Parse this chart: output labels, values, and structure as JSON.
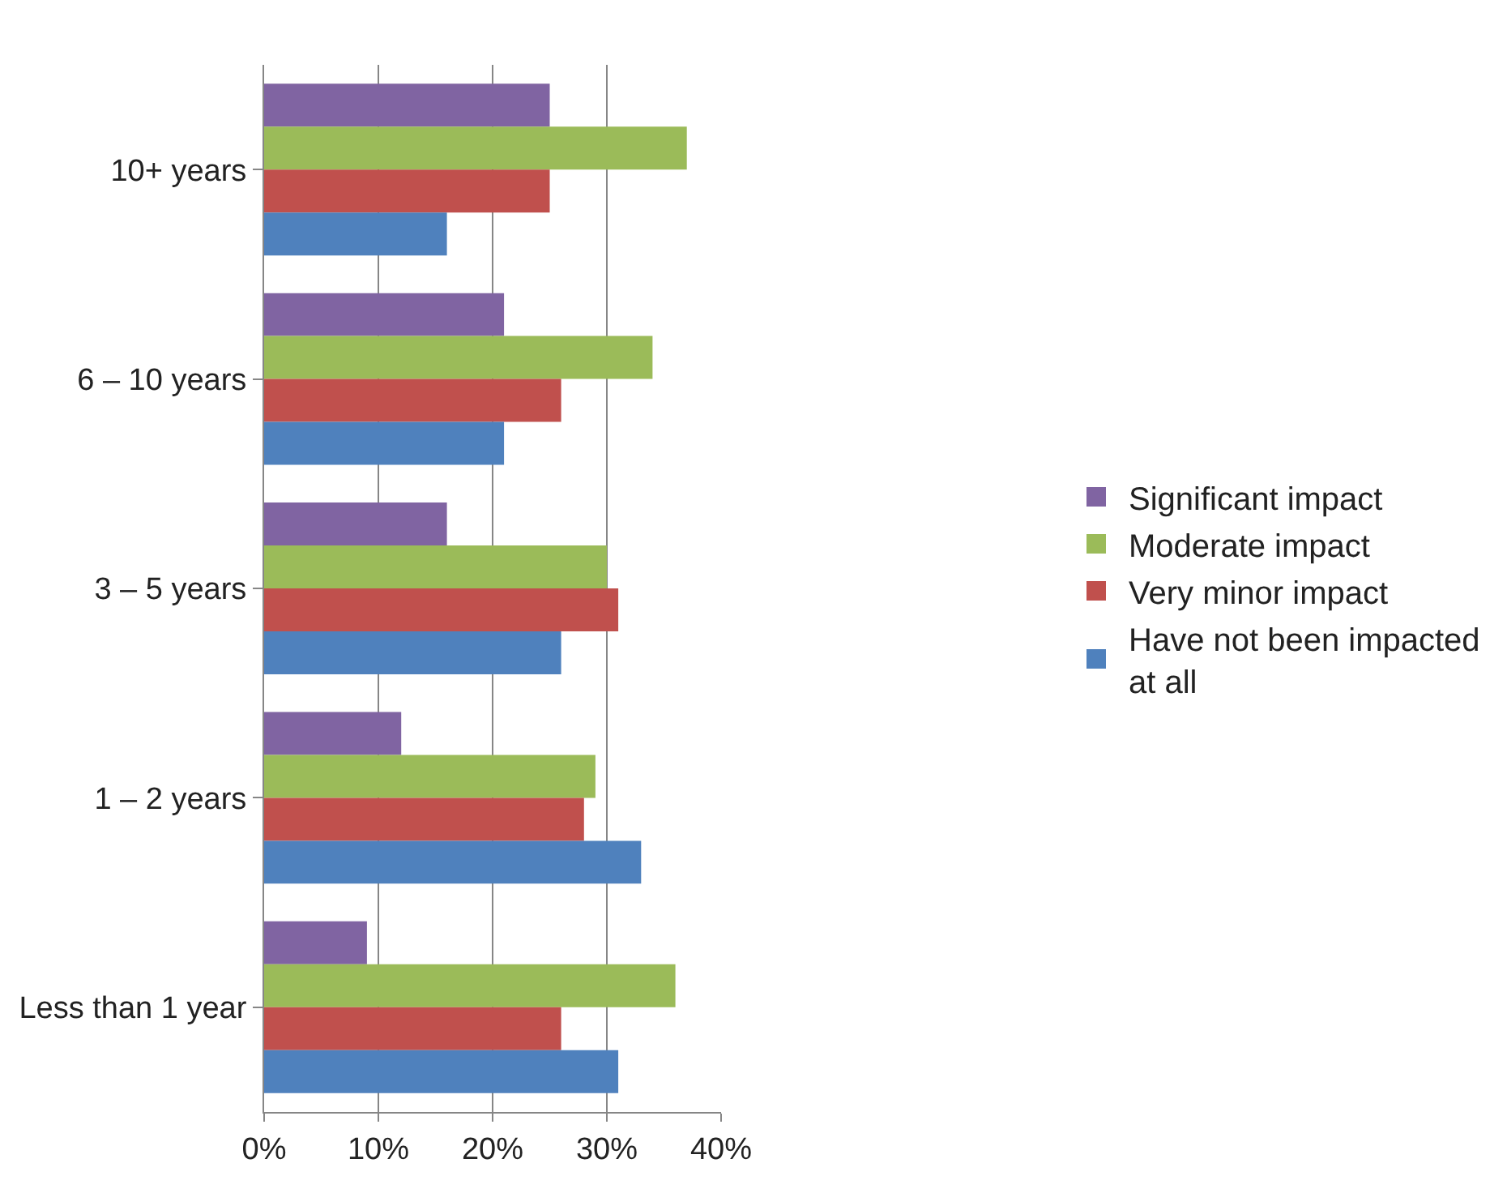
{
  "chart_data": {
    "type": "bar",
    "orientation": "horizontal",
    "categories": [
      "10+ years",
      "6 – 10 years",
      "3 – 5 years",
      "1 – 2 years",
      "Less than 1 year"
    ],
    "series": [
      {
        "name": "Significant impact",
        "color": "#8064a2",
        "values": [
          25,
          21,
          16,
          12,
          9
        ]
      },
      {
        "name": "Moderate impact",
        "color": "#9bbb59",
        "values": [
          37,
          34,
          30,
          29,
          36
        ]
      },
      {
        "name": "Very minor impact",
        "color": "#c0504d",
        "values": [
          25,
          26,
          31,
          28,
          26
        ]
      },
      {
        "name": "Have not been impacted at all",
        "color": "#4f81bd",
        "values": [
          16,
          21,
          26,
          33,
          31
        ]
      }
    ],
    "xlim": [
      0,
      40
    ],
    "xticks": [
      {
        "value": 0,
        "label": "0%"
      },
      {
        "value": 10,
        "label": "10%"
      },
      {
        "value": 20,
        "label": "20%"
      },
      {
        "value": 30,
        "label": "30%"
      },
      {
        "value": 40,
        "label": "40%"
      }
    ],
    "grid": "x",
    "legend": "right"
  }
}
